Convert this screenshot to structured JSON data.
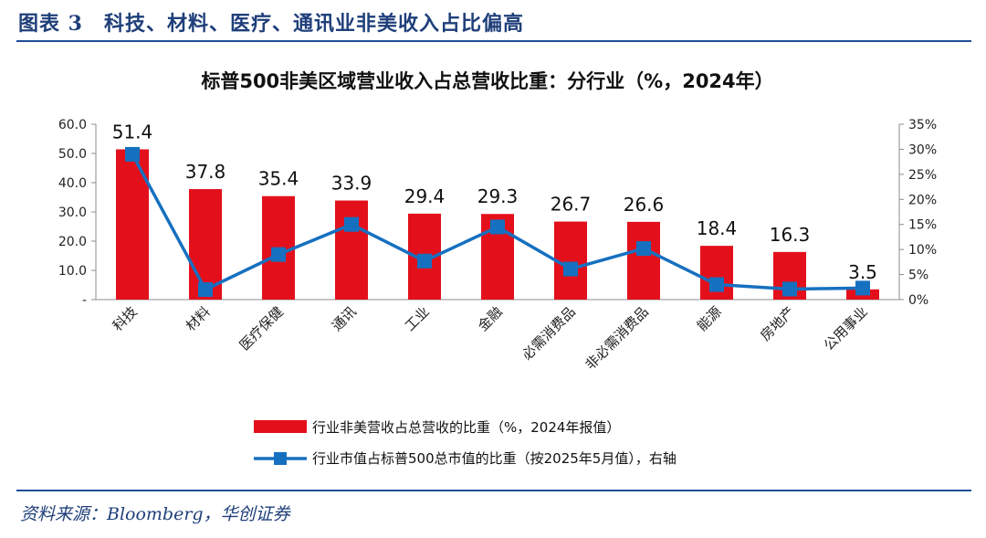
{
  "figure": {
    "title": "图表 3　科技、材料、医疗、通讯业非美收入占比偏高",
    "source": "资料来源：Bloomberg，华创证券"
  },
  "colors": {
    "bar": "#e3101c",
    "line": "#1670c0",
    "rule": "#1f4e96",
    "title": "#1f3f7a"
  },
  "chart_data": {
    "type": "bar",
    "title": "标普500非美区域营业收入占总营收比重：分行业（%，2024年）",
    "categories": [
      "科技",
      "材料",
      "医疗保健",
      "通讯",
      "工业",
      "金融",
      "必需消费品",
      "非必需消费品",
      "能源",
      "房地产",
      "公用事业"
    ],
    "series": [
      {
        "name": "行业非美营收占总营收的比重（%，2024年报值）",
        "type": "bar",
        "axis": "left",
        "values": [
          51.4,
          37.8,
          35.4,
          33.9,
          29.4,
          29.3,
          26.7,
          26.6,
          18.4,
          16.3,
          3.5
        ],
        "data_labels": [
          "51.4",
          "37.8",
          "35.4",
          "33.9",
          "29.4",
          "29.3",
          "26.7",
          "26.6",
          "18.4",
          "16.3",
          "3.5"
        ]
      },
      {
        "name": "行业市值占标普500总市值的比重（按2025年5月值），右轴",
        "type": "line",
        "axis": "right",
        "marker": "square",
        "values": [
          0.29,
          0.02,
          0.09,
          0.15,
          0.077,
          0.145,
          0.061,
          0.102,
          0.03,
          0.021,
          0.023
        ]
      }
    ],
    "left_axis": {
      "ylim": [
        0,
        60
      ],
      "ticks": [
        0,
        10,
        20,
        30,
        40,
        50,
        60
      ],
      "tick_labels": [
        "-",
        "10.0",
        "20.0",
        "30.0",
        "40.0",
        "50.0",
        "60.0"
      ]
    },
    "right_axis": {
      "ylim": [
        0,
        0.35
      ],
      "ticks": [
        0,
        0.05,
        0.1,
        0.15,
        0.2,
        0.25,
        0.3,
        0.35
      ],
      "tick_labels": [
        "0%",
        "5%",
        "10%",
        "15%",
        "20%",
        "25%",
        "30%",
        "35%"
      ]
    },
    "grid": false,
    "legend_position": "bottom"
  }
}
